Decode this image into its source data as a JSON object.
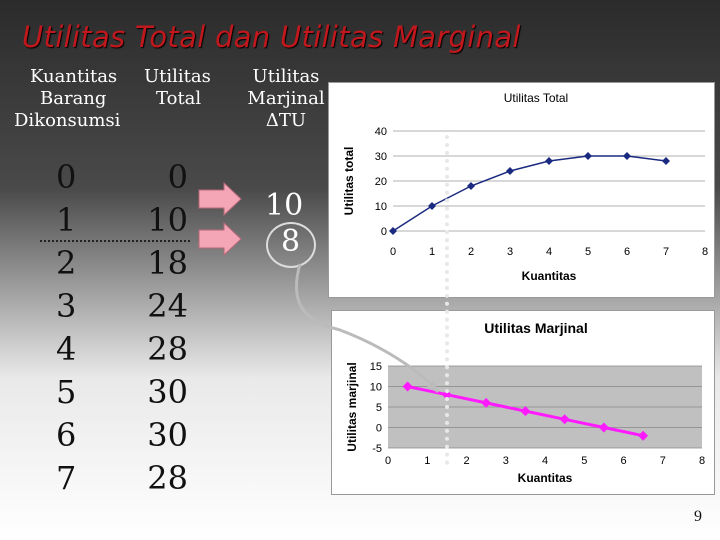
{
  "slide": {
    "title": "Utilitas Total dan Utilitas Marginal",
    "page_number": "9"
  },
  "table": {
    "headers": {
      "quantity": [
        "Kuantitas",
        "Barang",
        "Dikonsumsi"
      ],
      "total": [
        "Utilitas",
        "Total"
      ],
      "marginal": [
        "Utilitas",
        "Marjinal",
        "ΔTU"
      ]
    },
    "quantity_values": [
      "0",
      "1",
      "2",
      "3",
      "4",
      "5",
      "6",
      "7"
    ],
    "total_values": [
      "0",
      "10",
      "18",
      "24",
      "28",
      "30",
      "30",
      "28"
    ],
    "marginal_values": [
      "10",
      "8"
    ]
  },
  "chart_data": [
    {
      "type": "line",
      "title": "Utilitas Total",
      "xlabel": "Kuantitas",
      "ylabel": "Utilitas total",
      "x": [
        0,
        1,
        2,
        3,
        4,
        5,
        6,
        7
      ],
      "series": [
        {
          "values": [
            0,
            10,
            18,
            24,
            28,
            30,
            30,
            28
          ]
        }
      ],
      "xlim": [
        0,
        8
      ],
      "ylim": [
        0,
        40
      ],
      "xticks": [
        "0",
        "1",
        "2",
        "3",
        "4",
        "5",
        "6",
        "7",
        "8"
      ],
      "yticks": [
        "0",
        "10",
        "20",
        "30",
        "40"
      ],
      "grid": true,
      "color": "#1a2a80"
    },
    {
      "type": "line",
      "title": "Utilitas Marjinal",
      "xlabel": "Kuantitas",
      "ylabel": "Utilitas marjinal",
      "x": [
        0.5,
        1.5,
        2.5,
        3.5,
        4.5,
        5.5,
        6.5
      ],
      "series": [
        {
          "values": [
            10,
            8,
            6,
            4,
            2,
            0,
            -2
          ]
        }
      ],
      "xlim": [
        0,
        8
      ],
      "ylim": [
        -5,
        15
      ],
      "xticks": [
        "0",
        "1",
        "2",
        "3",
        "4",
        "5",
        "6",
        "7",
        "8"
      ],
      "yticks": [
        "-5",
        "0",
        "5",
        "10",
        "15"
      ],
      "grid": true,
      "plot_background": "#c0c0c0",
      "color": "#ff1aff"
    }
  ]
}
